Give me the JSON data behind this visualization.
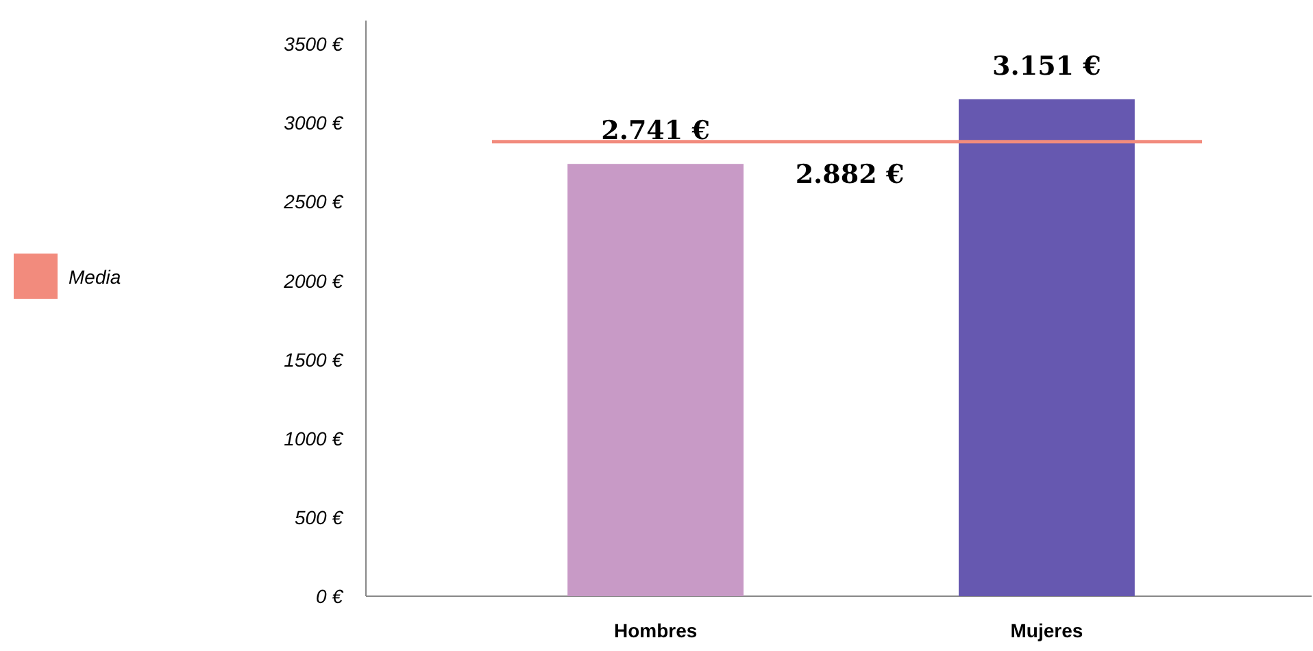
{
  "chart_data": {
    "type": "bar",
    "categories": [
      "Hombres",
      "Mujeres"
    ],
    "values": [
      2741,
      3151
    ],
    "colors": [
      "#c89ac6",
      "#6658b0"
    ],
    "value_labels": [
      "2.741 €",
      "3.151 €"
    ],
    "ylim": [
      0,
      3650
    ],
    "yticks": [
      {
        "value": 0,
        "label": "0 €"
      },
      {
        "value": 500,
        "label": "500 €"
      },
      {
        "value": 1000,
        "label": "1000 €"
      },
      {
        "value": 1500,
        "label": "1500 €"
      },
      {
        "value": 2000,
        "label": "2000 €"
      },
      {
        "value": 2500,
        "label": "2500 €"
      },
      {
        "value": 3000,
        "label": "3000 €"
      },
      {
        "value": 3500,
        "label": "3500 €"
      }
    ],
    "ref_lines": [
      {
        "axis": "y",
        "value": 2882,
        "label": "2.882 €",
        "color": "#f28b7d"
      }
    ],
    "annotations": [
      "Media"
    ],
    "legend": "left",
    "grid": false
  }
}
